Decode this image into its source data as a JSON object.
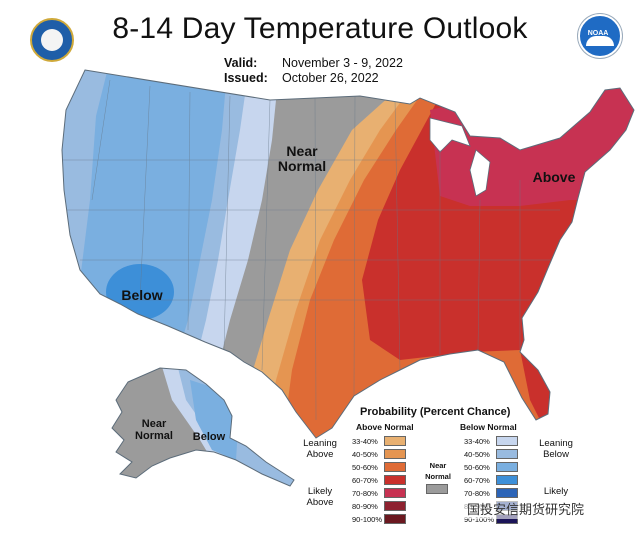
{
  "header": {
    "title": "8-14 Day Temperature Outlook",
    "valid_label": "Valid:",
    "valid_value": "November 3 - 9, 2022",
    "issued_label": "Issued:",
    "issued_value": "October 26, 2022"
  },
  "logos": {
    "left": "department-of-commerce-seal",
    "right": "noaa-logo",
    "right_text": "NOAA"
  },
  "map_labels": {
    "near_normal": "Near\nNormal",
    "above": "Above",
    "below_sw": "Below",
    "ak_near_normal": "Near\nNormal",
    "ak_below": "Below"
  },
  "legend": {
    "title": "Probability (Percent Chance)",
    "above_head": "Above Normal",
    "below_head": "Below Normal",
    "near_label": "Near\nNormal",
    "leaning_above": "Leaning\nAbove",
    "likely_above": "Likely\nAbove",
    "leaning_below": "Leaning\nBelow",
    "likely_below": "Likely",
    "bins": [
      "33-40%",
      "40-50%",
      "50-60%",
      "60-70%",
      "70-80%",
      "80-90%",
      "90-100%"
    ],
    "above_colors": [
      "#e8b071",
      "#e59551",
      "#df6b36",
      "#c9302c",
      "#c73252",
      "#8e2230",
      "#6b1820"
    ],
    "below_colors": [
      "#c7d6ee",
      "#99bbe0",
      "#7aafe0",
      "#3d8fd8",
      "#2c64b7",
      "#1e3c8c",
      "#1b1458"
    ],
    "near_color": "#9b9b9b"
  },
  "watermark": "国投安信期货研究院",
  "colors": {
    "near": "#9b9b9b",
    "below_leaning": "#c7d6ee",
    "below_40": "#99bbe0",
    "below_50": "#7aafe0",
    "below_60": "#3d8fd8",
    "above_leaning": "#e8b071",
    "above_40": "#e59551",
    "above_50": "#df6b36",
    "above_60": "#c9302c",
    "above_70": "#c73252"
  }
}
